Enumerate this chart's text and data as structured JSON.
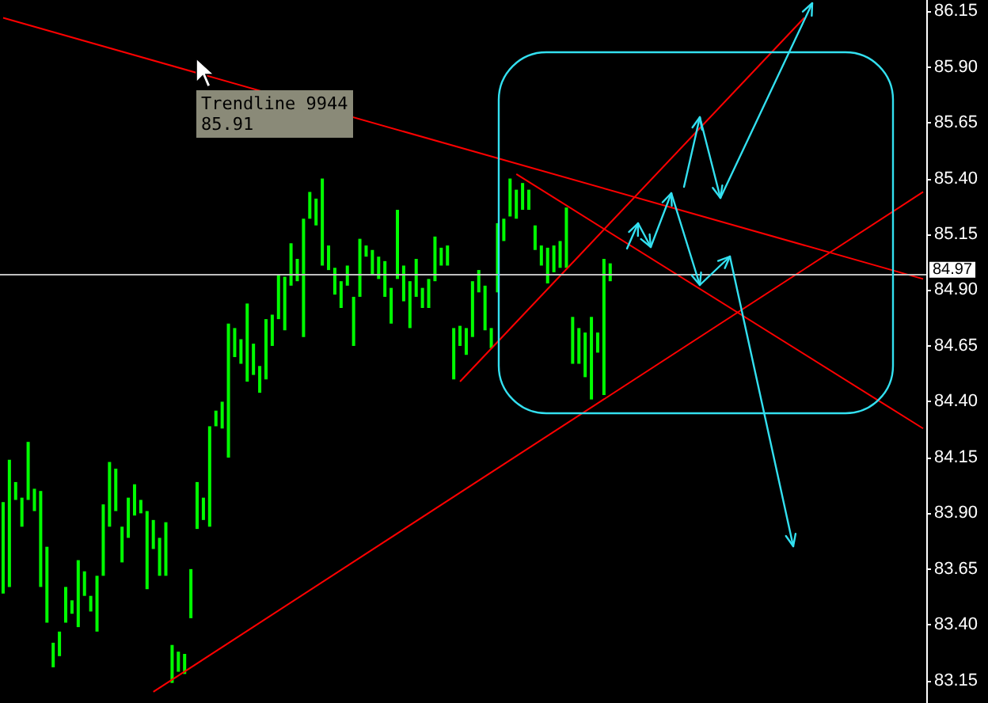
{
  "chart_data": {
    "type": "bar",
    "categories": [
      null,
      null,
      null,
      null,
      null,
      null,
      null,
      null,
      null,
      null,
      null,
      null,
      null,
      null,
      null,
      null,
      null,
      null,
      null,
      null,
      null,
      null,
      null,
      null,
      null,
      null,
      null,
      null,
      null,
      null,
      null,
      null,
      null,
      null,
      null,
      null,
      null,
      null,
      null,
      null,
      null,
      null,
      null,
      null,
      null,
      null,
      null,
      null,
      null,
      null,
      null,
      null,
      null,
      null,
      null,
      null,
      null,
      null,
      null,
      null,
      null,
      null,
      null,
      null,
      null,
      null,
      null,
      null,
      null,
      null,
      null,
      null,
      null,
      null,
      null,
      null,
      null,
      null,
      null,
      null,
      null,
      null,
      null,
      null,
      null,
      null,
      null,
      null,
      null,
      null,
      null,
      null,
      null,
      null,
      null,
      null,
      null,
      null,
      null,
      null,
      null,
      null,
      null,
      null,
      null,
      null,
      null,
      null,
      null,
      null,
      null,
      null,
      null,
      null,
      null,
      null,
      null,
      null,
      null,
      null,
      null,
      null,
      null,
      null,
      null,
      null,
      null,
      null,
      null,
      null,
      null,
      null,
      null,
      null,
      null,
      null,
      null,
      null,
      null,
      null,
      null,
      null,
      null,
      null,
      null,
      null,
      null,
      null
    ],
    "series": [
      {
        "color": "#00ff00",
        "base": [
          83.54,
          83.57,
          83.96,
          83.84,
          83.96,
          83.91,
          83.57,
          83.41,
          83.21,
          83.26,
          83.41,
          83.45,
          83.39,
          83.53,
          83.46,
          83.37,
          83.62,
          83.84,
          83.91,
          83.68,
          83.79,
          83.89,
          83.9,
          83.56,
          83.74,
          83.62,
          83.62,
          83.14,
          83.19,
          83.18,
          83.43,
          83.83,
          83.87,
          83.84,
          84.29,
          84.28,
          84.15,
          84.6,
          84.57,
          84.49,
          84.52,
          84.44,
          84.5,
          84.65,
          84.77,
          84.72,
          84.92,
          84.94,
          84.69,
          85.22,
          85.19,
          85.01,
          84.99,
          84.88,
          84.82,
          84.92,
          84.65,
          84.87,
          85.05,
          84.97,
          84.95,
          84.87,
          84.75,
          84.95,
          84.85,
          84.73,
          84.87,
          84.82,
          84.82,
          84.94,
          85.01,
          85.01,
          84.5,
          84.65,
          84.61,
          84.69,
          84.89,
          84.72,
          84.64,
          84.89,
          85.12,
          85.23,
          85.22,
          85.26,
          85.26,
          85.08,
          85.01,
          84.93,
          84.98,
          85.0,
          85.0,
          84.57,
          84.57,
          84.51,
          84.41,
          84.62,
          84.43,
          84.94,
          null,
          null,
          null,
          null,
          null,
          null,
          null,
          null,
          null,
          null,
          null,
          null,
          null,
          null,
          null,
          null,
          null,
          null,
          null,
          null,
          null,
          null,
          null,
          null,
          null,
          null,
          null,
          null,
          null,
          null,
          null,
          null,
          null,
          null,
          null,
          null,
          null,
          null,
          null,
          null,
          null,
          null,
          null,
          null,
          null,
          null,
          null,
          null,
          null,
          null
        ],
        "values": [
          0.41,
          0.57,
          0.08,
          0.13,
          0.26,
          0.1,
          0.43,
          0.34,
          0.11,
          0.11,
          0.16,
          0.06,
          0.3,
          0.11,
          0.07,
          0.25,
          0.32,
          0.29,
          0.19,
          0.16,
          0.18,
          0.14,
          0.06,
          0.35,
          0.13,
          0.17,
          0.24,
          0.17,
          0.09,
          0.09,
          0.22,
          0.21,
          0.1,
          0.45,
          0.07,
          0.12,
          0.6,
          0.13,
          0.11,
          0.35,
          0.14,
          0.12,
          0.27,
          0.14,
          0.2,
          0.24,
          0.19,
          0.1,
          0.53,
          0.12,
          0.12,
          0.39,
          0.11,
          0.12,
          0.12,
          0.09,
          0.22,
          0.26,
          0.05,
          0.11,
          0.1,
          0.16,
          0.16,
          0.31,
          0.16,
          0.21,
          0.17,
          0.09,
          0.13,
          0.2,
          0.08,
          0.09,
          0.23,
          0.09,
          0.12,
          0.25,
          0.1,
          0.2,
          0.09,
          0.31,
          0.1,
          0.17,
          0.13,
          0.12,
          0.09,
          0.11,
          0.09,
          0.16,
          0.12,
          0.12,
          0.27,
          0.21,
          0.16,
          0.2,
          0.37,
          0.09,
          0.61,
          0.08,
          null,
          null,
          null,
          null,
          null,
          null,
          null,
          null,
          null,
          null,
          null,
          null,
          null,
          null,
          null,
          null,
          null,
          null,
          null,
          null,
          null,
          null,
          null,
          null,
          null,
          null,
          null,
          null,
          null,
          null,
          null,
          null,
          null,
          null,
          null,
          null,
          null,
          null,
          null,
          null,
          null,
          null,
          null,
          null,
          null,
          null,
          null,
          null,
          null,
          null
        ]
      },
      {
        "type": "line",
        "color": "#ff0000",
        "values": [
          86.12,
          null,
          null,
          null,
          null,
          null,
          null,
          null,
          null,
          null,
          null,
          null,
          null,
          null,
          null,
          null,
          null,
          null,
          null,
          null,
          null,
          null,
          null,
          null,
          null,
          null,
          null,
          null,
          null,
          null,
          null,
          null,
          null,
          null,
          null,
          null,
          null,
          null,
          null,
          null,
          null,
          null,
          null,
          null,
          null,
          null,
          null,
          null,
          null,
          null,
          null,
          null,
          null,
          null,
          null,
          null,
          null,
          null,
          null,
          null,
          null,
          null,
          null,
          null,
          null,
          null,
          null,
          null,
          null,
          null,
          null,
          null,
          null,
          null,
          null,
          null,
          null,
          null,
          null,
          null,
          null,
          null,
          null,
          null,
          null,
          null,
          null,
          null,
          null,
          null,
          null,
          null,
          null,
          null,
          null,
          null,
          null,
          null,
          null,
          null,
          null,
          null,
          null,
          null,
          null,
          null,
          null,
          null,
          null,
          null,
          null,
          null,
          null,
          null,
          null,
          null,
          null,
          null,
          null,
          null,
          null,
          null,
          null,
          null,
          null,
          null,
          null,
          null,
          null,
          null,
          null,
          null,
          null,
          null,
          null,
          null,
          null,
          null,
          null,
          null,
          null,
          null,
          null,
          null,
          null,
          null,
          null,
          84.95
        ]
      },
      {
        "type": "line",
        "color": "#ff0000",
        "values": [
          null,
          null,
          null,
          null,
          null,
          null,
          null,
          null,
          null,
          null,
          null,
          null,
          null,
          null,
          null,
          null,
          null,
          null,
          null,
          null,
          null,
          null,
          null,
          null,
          83.1,
          null,
          null,
          null,
          null,
          null,
          null,
          null,
          null,
          null,
          null,
          null,
          null,
          null,
          null,
          null,
          null,
          null,
          null,
          null,
          null,
          null,
          null,
          null,
          null,
          null,
          null,
          null,
          null,
          null,
          null,
          null,
          null,
          null,
          null,
          null,
          null,
          null,
          null,
          null,
          null,
          null,
          null,
          null,
          null,
          null,
          null,
          null,
          null,
          null,
          null,
          null,
          null,
          null,
          null,
          null,
          null,
          null,
          null,
          null,
          null,
          null,
          null,
          null,
          null,
          null,
          null,
          null,
          null,
          null,
          null,
          null,
          null,
          null,
          null,
          null,
          null,
          null,
          null,
          null,
          null,
          null,
          null,
          null,
          null,
          null,
          null,
          null,
          null,
          null,
          null,
          null,
          null,
          null,
          null,
          null,
          null,
          null,
          null,
          null,
          null,
          null,
          null,
          null,
          null,
          null,
          null,
          null,
          null,
          null,
          null,
          null,
          null,
          null,
          null,
          null,
          null,
          null,
          null,
          null,
          null,
          null,
          null,
          85.34
        ]
      },
      {
        "type": "line",
        "color": "#ff0000",
        "values": [
          null,
          null,
          null,
          null,
          null,
          null,
          null,
          null,
          null,
          null,
          null,
          null,
          null,
          null,
          null,
          null,
          null,
          null,
          null,
          null,
          null,
          null,
          null,
          null,
          null,
          null,
          null,
          null,
          null,
          null,
          null,
          null,
          null,
          null,
          null,
          null,
          null,
          null,
          null,
          null,
          null,
          null,
          null,
          null,
          null,
          null,
          null,
          null,
          null,
          null,
          null,
          null,
          null,
          null,
          null,
          null,
          null,
          null,
          null,
          null,
          null,
          null,
          null,
          null,
          null,
          null,
          null,
          null,
          null,
          null,
          null,
          null,
          null,
          84.49,
          null,
          null,
          null,
          null,
          null,
          null,
          null,
          null,
          null,
          null,
          null,
          null,
          null,
          null,
          null,
          null,
          null,
          null,
          null,
          null,
          null,
          null,
          null,
          null,
          null,
          null,
          null,
          null,
          null,
          null,
          null,
          null,
          null,
          null,
          null,
          null,
          null,
          null,
          null,
          null,
          null,
          null,
          null,
          null,
          null,
          null,
          null,
          null,
          null,
          null,
          null,
          null,
          null,
          null,
          86.12,
          null,
          null,
          null,
          null,
          null,
          null,
          null,
          null,
          null,
          null,
          null,
          null,
          null,
          null,
          null,
          null,
          null,
          null,
          null
        ]
      },
      {
        "type": "line",
        "color": "#ff0000",
        "values": [
          null,
          null,
          null,
          null,
          null,
          null,
          null,
          null,
          null,
          null,
          null,
          null,
          null,
          null,
          null,
          null,
          null,
          null,
          null,
          null,
          null,
          null,
          null,
          null,
          null,
          null,
          null,
          null,
          null,
          null,
          null,
          null,
          null,
          null,
          null,
          null,
          null,
          null,
          null,
          null,
          null,
          null,
          null,
          null,
          null,
          null,
          null,
          null,
          null,
          null,
          null,
          null,
          null,
          null,
          null,
          null,
          null,
          null,
          null,
          null,
          null,
          null,
          null,
          null,
          null,
          null,
          null,
          null,
          null,
          null,
          null,
          null,
          null,
          null,
          null,
          null,
          null,
          null,
          null,
          null,
          null,
          null,
          85.42,
          null,
          null,
          null,
          null,
          null,
          null,
          null,
          null,
          null,
          null,
          null,
          null,
          null,
          null,
          null,
          null,
          null,
          null,
          null,
          null,
          null,
          null,
          null,
          null,
          null,
          null,
          null,
          null,
          null,
          null,
          null,
          null,
          null,
          null,
          null,
          null,
          null,
          null,
          null,
          null,
          null,
          null,
          null,
          null,
          null,
          null,
          null,
          null,
          null,
          null,
          null,
          null,
          null,
          null,
          null,
          null,
          null,
          null,
          null,
          null,
          null,
          null,
          null,
          null,
          84.28
        ]
      }
    ],
    "ylim": [
      83.05,
      86.2
    ],
    "yticks": [
      {
        "value": 83.15,
        "label": "83.15"
      },
      {
        "value": 83.4,
        "label": "83.40"
      },
      {
        "value": 83.65,
        "label": "83.65"
      },
      {
        "value": 83.9,
        "label": "83.90"
      },
      {
        "value": 84.15,
        "label": "84.15"
      },
      {
        "value": 84.4,
        "label": "84.40"
      },
      {
        "value": 84.65,
        "label": "84.65"
      },
      {
        "value": 84.9,
        "label": "84.90"
      },
      {
        "value": 85.15,
        "label": "85.15"
      },
      {
        "value": 85.4,
        "label": "85.40"
      },
      {
        "value": 85.65,
        "label": "85.65"
      },
      {
        "value": 85.9,
        "label": "85.90"
      },
      {
        "value": 86.15,
        "label": "86.15"
      }
    ],
    "ref_lines": [
      {
        "axis": "y",
        "value": 84.97,
        "label": "84.97",
        "color": "#c0c0c0"
      }
    ],
    "annotations": [
      "Trendline 9944",
      "85.91"
    ],
    "tick_labels": "y",
    "grid": false
  }
}
